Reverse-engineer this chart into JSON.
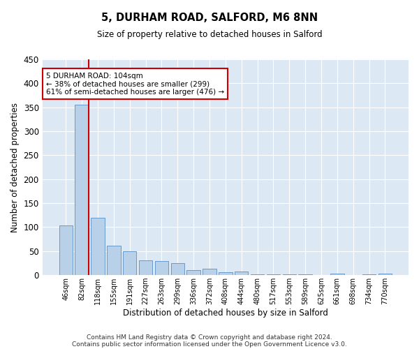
{
  "title1": "5, DURHAM ROAD, SALFORD, M6 8NN",
  "title2": "Size of property relative to detached houses in Salford",
  "xlabel": "Distribution of detached houses by size in Salford",
  "ylabel": "Number of detached properties",
  "bar_color": "#b8d0e8",
  "bar_edge_color": "#6699cc",
  "background_color": "#dce9f5",
  "grid_color": "#ffffff",
  "vline_color": "#cc0000",
  "annotation_text": "5 DURHAM ROAD: 104sqm\n← 38% of detached houses are smaller (299)\n61% of semi-detached houses are larger (476) →",
  "annotation_box_color": "#ffffff",
  "annotation_border_color": "#cc0000",
  "categories": [
    "46sqm",
    "82sqm",
    "118sqm",
    "155sqm",
    "191sqm",
    "227sqm",
    "263sqm",
    "299sqm",
    "336sqm",
    "372sqm",
    "408sqm",
    "444sqm",
    "480sqm",
    "517sqm",
    "553sqm",
    "589sqm",
    "625sqm",
    "661sqm",
    "698sqm",
    "734sqm",
    "770sqm"
  ],
  "values": [
    104,
    356,
    120,
    62,
    50,
    31,
    30,
    25,
    11,
    14,
    6,
    7,
    2,
    1,
    1,
    1,
    0,
    3,
    0,
    1,
    3
  ],
  "ylim": [
    0,
    450
  ],
  "yticks": [
    0,
    50,
    100,
    150,
    200,
    250,
    300,
    350,
    400,
    450
  ],
  "footnote1": "Contains HM Land Registry data © Crown copyright and database right 2024.",
  "footnote2": "Contains public sector information licensed under the Open Government Licence v3.0.",
  "figsize": [
    6.0,
    5.0
  ],
  "dpi": 100
}
